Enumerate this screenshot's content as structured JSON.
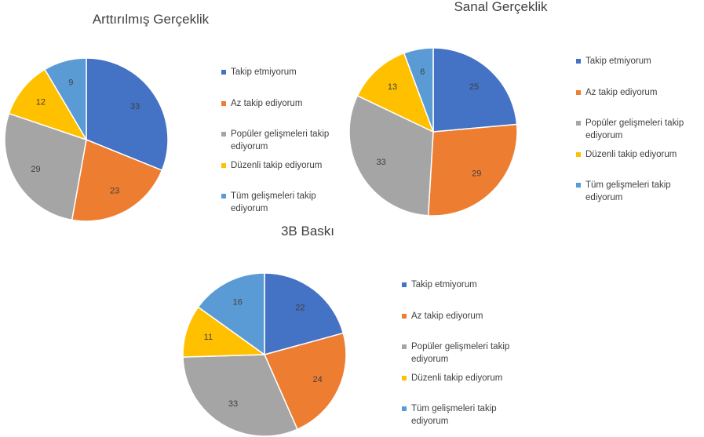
{
  "chart_data": [
    {
      "type": "pie",
      "title": "Arttırılmış Gerçeklik",
      "categories": [
        "Takip etmiyorum",
        "Az takip ediyorum",
        "Popüler gelişmeleri takip ediyorum",
        "Düzenli takip ediyorum",
        "Tüm gelişmeleri takip ediyorum"
      ],
      "values": [
        33,
        23,
        29,
        12,
        9
      ],
      "colors": [
        "#4472c4",
        "#ed7d31",
        "#a5a5a5",
        "#ffc000",
        "#5b9bd5"
      ],
      "legend": "right"
    },
    {
      "type": "pie",
      "title": "Sanal Gerçeklik",
      "categories": [
        "Takip etmiyorum",
        "Az takip ediyorum",
        "Popüler gelişmeleri takip ediyorum",
        "Düzenli takip ediyorum",
        "Tüm gelişmeleri takip ediyorum"
      ],
      "values": [
        25,
        29,
        33,
        13,
        6
      ],
      "colors": [
        "#4472c4",
        "#ed7d31",
        "#a5a5a5",
        "#ffc000",
        "#5b9bd5"
      ],
      "legend": "right"
    },
    {
      "type": "pie",
      "title": "3B Baskı",
      "categories": [
        "Takip etmiyorum",
        "Az takip ediyorum",
        "Popüler gelişmeleri takip ediyorum",
        "Düzenli takip ediyorum",
        "Tüm gelişmeleri takip ediyorum"
      ],
      "values": [
        22,
        24,
        33,
        11,
        16
      ],
      "colors": [
        "#4472c4",
        "#ed7d31",
        "#a5a5a5",
        "#ffc000",
        "#5b9bd5"
      ],
      "legend": "right"
    }
  ]
}
